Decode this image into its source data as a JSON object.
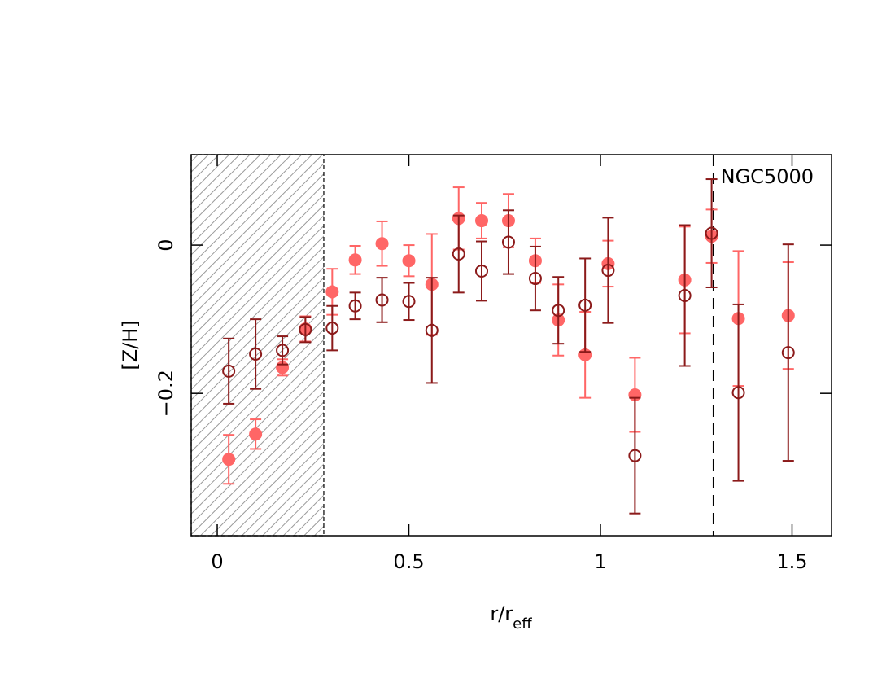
{
  "chart_data": {
    "type": "scatter",
    "annotation": "NGC5000",
    "xlabel": "r/r",
    "xlabel_sub": "eff",
    "ylabel": "[Z/H]",
    "xlim": [
      -0.068,
      1.603
    ],
    "ylim": [
      -0.392,
      0.122
    ],
    "xticks": [
      0,
      0.5,
      1,
      1.5
    ],
    "yticks": [
      0,
      {
        "value": -0.2,
        "label": "−0.2"
      }
    ],
    "shaded_x": [
      -0.068,
      0.278
    ],
    "vline_x": 1.295,
    "x": [
      0.03,
      0.1,
      0.17,
      0.23,
      0.3,
      0.36,
      0.43,
      0.5,
      0.56,
      0.63,
      0.69,
      0.76,
      0.83,
      0.89,
      0.96,
      1.02,
      1.09,
      1.22,
      1.29,
      1.36,
      1.49
    ],
    "series": [
      {
        "color": "#ff6666",
        "marker": "filled",
        "values": [
          -0.289,
          -0.255,
          -0.165,
          -0.113,
          -0.063,
          -0.02,
          0.002,
          -0.021,
          -0.053,
          0.036,
          0.033,
          0.033,
          -0.021,
          -0.101,
          -0.148,
          -0.025,
          -0.202,
          -0.047,
          0.012,
          -0.099,
          -0.095
        ],
        "errors": [
          0.033,
          0.02,
          0.011,
          0.017,
          0.031,
          0.019,
          0.03,
          0.021,
          0.068,
          0.042,
          0.024,
          0.036,
          0.03,
          0.048,
          0.058,
          0.031,
          0.05,
          0.072,
          0.036,
          0.091,
          0.072
        ]
      },
      {
        "color": "#8b1a1a",
        "marker": "open",
        "values": [
          -0.17,
          -0.147,
          -0.142,
          -0.114,
          -0.112,
          -0.082,
          -0.074,
          -0.076,
          -0.115,
          -0.012,
          -0.035,
          0.004,
          -0.045,
          -0.088,
          -0.081,
          -0.034,
          -0.284,
          -0.068,
          0.016,
          -0.199,
          -0.145
        ],
        "errors": [
          0.044,
          0.047,
          0.019,
          0.017,
          0.03,
          0.018,
          0.03,
          0.025,
          0.071,
          0.052,
          0.04,
          0.043,
          0.043,
          0.045,
          0.063,
          0.071,
          0.078,
          0.095,
          0.073,
          0.119,
          0.146
        ]
      }
    ]
  }
}
